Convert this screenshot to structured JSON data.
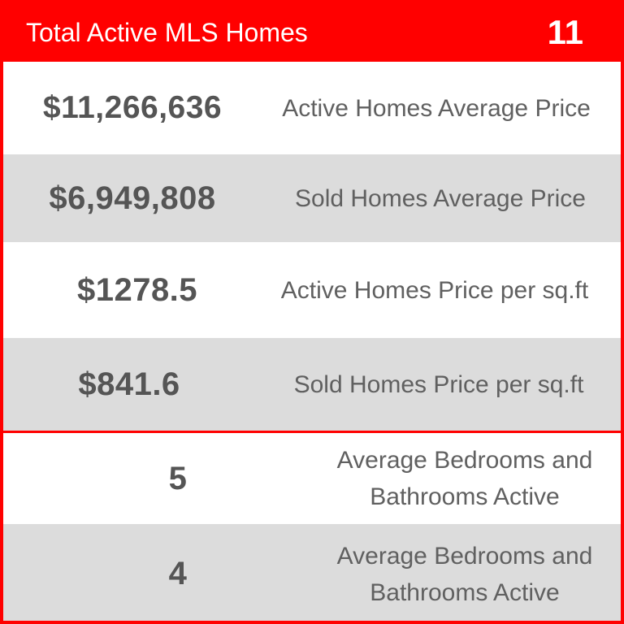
{
  "header": {
    "title": "Total Active MLS Homes",
    "count": "11"
  },
  "stats": [
    {
      "value": "$11,266,636",
      "label": "Active Homes Average Price"
    },
    {
      "value": "$6,949,808",
      "label": "Sold Homes Average Price"
    },
    {
      "value": "$1278.5",
      "label": "Active Homes Price per sq.ft"
    },
    {
      "value": "$841.6",
      "label": "Sold Homes Price per sq.ft"
    },
    {
      "value": "5",
      "label_line1": "Average Bedrooms and",
      "label_line2": "Bathrooms Active"
    },
    {
      "value": "4",
      "label_line1": "Average Bedrooms and",
      "label_line2": "Bathrooms Active"
    }
  ],
  "colors": {
    "header_background": "#ff0000",
    "border": "#ff0000",
    "row_alternate": "#dcdcdc",
    "value_text": "#555555",
    "label_text": "#606060"
  }
}
